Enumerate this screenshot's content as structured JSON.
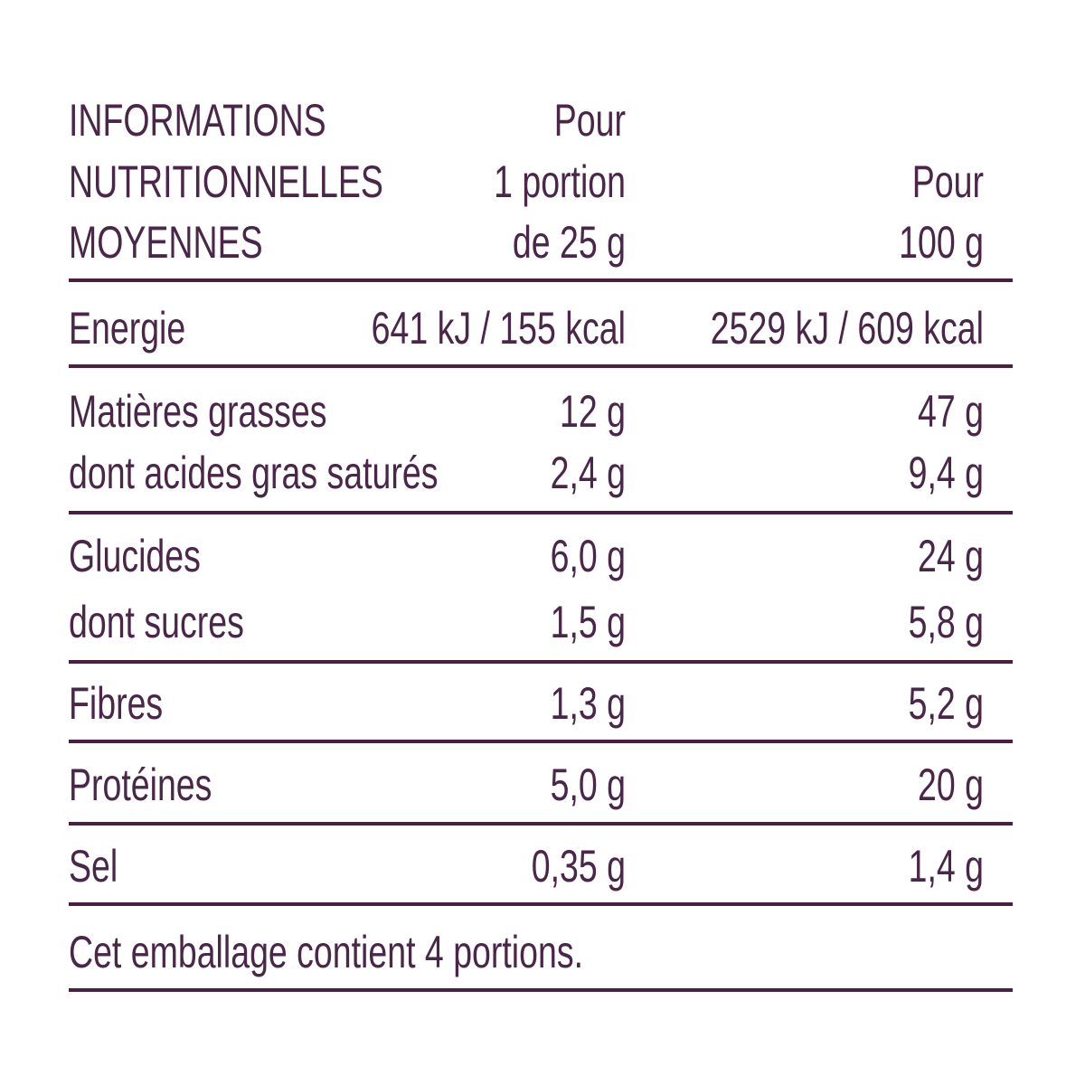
{
  "header": {
    "title": [
      "INFORMATIONS",
      "NUTRITIONNELLES",
      "MOYENNES"
    ],
    "per_portion": [
      "Pour",
      "1 portion",
      "de 25 g"
    ],
    "per_100g": [
      "Pour",
      "100 g"
    ]
  },
  "groups": [
    [
      [
        "Energie",
        "641 kJ / 155 kcal",
        "2529 kJ / 609 kcal"
      ]
    ],
    [
      [
        "Matières grasses",
        "12 g",
        "47 g"
      ],
      [
        "dont acides gras saturés",
        "2,4 g",
        "9,4 g"
      ]
    ],
    [
      [
        "Glucides",
        "6,0 g",
        "24 g"
      ],
      [
        "dont sucres",
        "1,5 g",
        "5,8 g"
      ]
    ],
    [
      [
        "Fibres",
        "1,3 g",
        "5,2 g"
      ]
    ],
    [
      [
        "Protéines",
        "5,0 g",
        "20 g"
      ]
    ],
    [
      [
        "Sel",
        "0,35 g",
        "1,4 g"
      ]
    ]
  ],
  "note": "Cet emballage contient 4 portions."
}
